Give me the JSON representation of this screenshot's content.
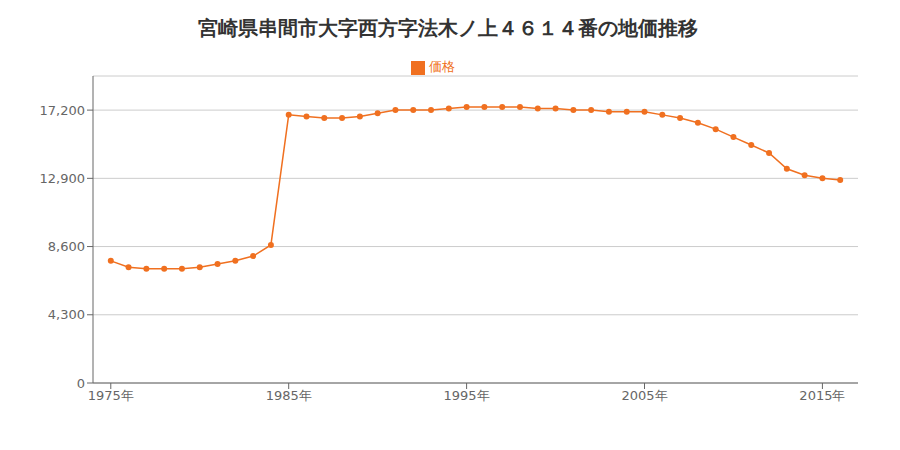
{
  "chart_data": {
    "type": "line",
    "title": "宮崎県串間市大字西方字法木ノ上４６１４番の地価推移",
    "x": [
      1975,
      1976,
      1977,
      1978,
      1979,
      1980,
      1981,
      1982,
      1983,
      1984,
      1985,
      1986,
      1987,
      1988,
      1989,
      1990,
      1991,
      1992,
      1993,
      1994,
      1995,
      1996,
      1997,
      1998,
      1999,
      2000,
      2001,
      2002,
      2003,
      2004,
      2005,
      2006,
      2007,
      2008,
      2009,
      2010,
      2011,
      2012,
      2013,
      2014,
      2015,
      2016
    ],
    "series": [
      {
        "name": "価格",
        "color": "#F07020",
        "marker": "circle",
        "values": [
          7700,
          7300,
          7200,
          7200,
          7200,
          7300,
          7500,
          7700,
          8000,
          8700,
          16900,
          16800,
          16700,
          16700,
          16800,
          17000,
          17200,
          17200,
          17200,
          17300,
          17400,
          17400,
          17400,
          17400,
          17300,
          17300,
          17200,
          17200,
          17100,
          17100,
          17100,
          16900,
          16700,
          16400,
          16000,
          15500,
          15000,
          14500,
          13500,
          13100,
          12900,
          12800
        ]
      }
    ],
    "xlim": [
      1974,
      2017
    ],
    "xticks": [
      {
        "value": 1975,
        "label": "1975年"
      },
      {
        "value": 1985,
        "label": "1985年"
      },
      {
        "value": 1995,
        "label": "1995年"
      },
      {
        "value": 2005,
        "label": "2005年"
      },
      {
        "value": 2015,
        "label": "2015年"
      }
    ],
    "ylim": [
      0,
      19350
    ],
    "yticks": [
      0,
      {
        "value": 4300,
        "label": "4,300"
      },
      {
        "value": 8600,
        "label": "8,600"
      },
      {
        "value": 12900,
        "label": "12,900"
      },
      {
        "value": 17200,
        "label": "17,200"
      }
    ],
    "grid": true,
    "legend": "top"
  }
}
